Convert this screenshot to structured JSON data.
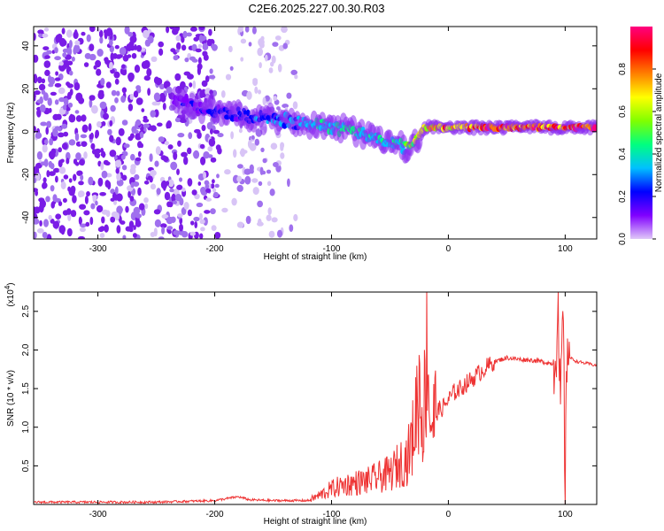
{
  "title": "C2E6.2025.227.00.30.R03",
  "chart_data": [
    {
      "type": "heatmap",
      "xlabel": "Height of straight line (km)",
      "ylabel": "Frequency (Hz)",
      "xlim": [
        -355,
        127
      ],
      "ylim": [
        -50,
        49
      ],
      "x_ticks": [
        -300,
        -200,
        -100,
        0,
        100
      ],
      "y_ticks": [
        -40,
        -20,
        0,
        20,
        40
      ],
      "colorbar": {
        "label": "Normalized spectral amplitude",
        "range": [
          0,
          1
        ],
        "ticks": [
          "0.0",
          "0.2",
          "0.4",
          "0.6",
          "0.8"
        ],
        "colors": [
          "#e0c8f8",
          "#8000ff",
          "#0000ff",
          "#00c0ff",
          "#00ff80",
          "#80ff00",
          "#ffff00",
          "#ff8000",
          "#ff0000",
          "#ff0080"
        ]
      },
      "ridge": {
        "x": [
          -235,
          -200,
          -170,
          -140,
          -110,
          -80,
          -50,
          -35,
          -20,
          0,
          40,
          80,
          127
        ],
        "frequency": [
          15,
          10,
          7,
          5,
          3,
          0,
          -5,
          -8,
          2,
          2,
          2,
          2,
          2
        ],
        "amplitude": [
          0.15,
          0.2,
          0.25,
          0.3,
          0.4,
          0.45,
          0.4,
          0.5,
          0.7,
          0.8,
          0.95,
          0.9,
          0.9
        ]
      }
    },
    {
      "type": "line",
      "xlabel": "Height of straight line (km)",
      "ylabel": "SNR (10 * v/v)",
      "y_multiplier": "(x10",
      "y_multiplier_exp": "4",
      "y_multiplier_close": ")",
      "xlim": [
        -355,
        127
      ],
      "ylim": [
        0,
        2.75
      ],
      "x_ticks": [
        -300,
        -200,
        -100,
        0,
        100
      ],
      "y_ticks": [
        "0.5",
        "1.0",
        "1.5",
        "2.0",
        "2.5"
      ],
      "series": [
        {
          "color": "#ee3333",
          "x": [
            -355,
            -250,
            -200,
            -180,
            -170,
            -150,
            -120,
            -110,
            -100,
            -90,
            -80,
            -70,
            -60,
            -50,
            -40,
            -35,
            -30,
            -27,
            -25,
            -22,
            -20,
            -18,
            -16,
            -14,
            -12,
            -10,
            -5,
            0,
            5,
            10,
            20,
            30,
            40,
            50,
            60,
            70,
            80,
            90,
            94,
            96,
            98,
            100,
            102,
            104,
            110,
            127
          ],
          "y": [
            0.03,
            0.03,
            0.05,
            0.1,
            0.06,
            0.05,
            0.05,
            0.12,
            0.2,
            0.25,
            0.28,
            0.3,
            0.35,
            0.4,
            0.55,
            0.6,
            0.9,
            1.3,
            1.55,
            1.1,
            1.4,
            2.2,
            1.2,
            1.05,
            1.15,
            1.2,
            1.25,
            1.35,
            1.45,
            1.5,
            1.62,
            1.75,
            1.85,
            1.9,
            1.88,
            1.87,
            1.85,
            1.82,
            2.3,
            1.1,
            2.6,
            0.2,
            2.3,
            1.9,
            1.85,
            1.8
          ]
        }
      ]
    }
  ]
}
